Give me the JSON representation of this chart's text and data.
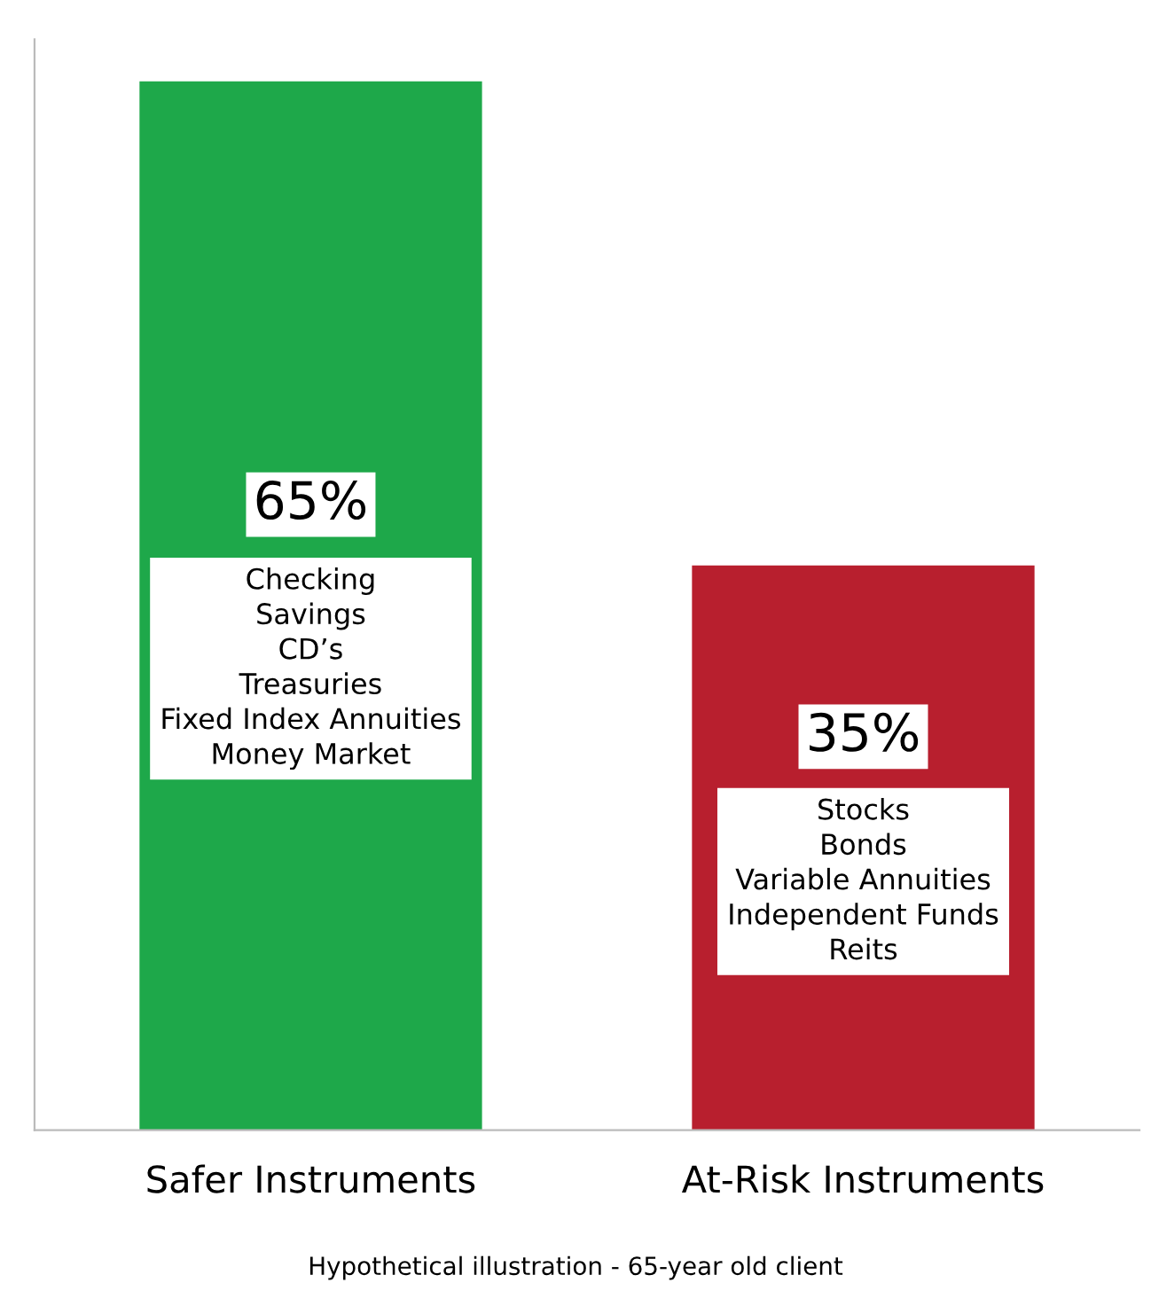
{
  "chart_data": {
    "type": "bar",
    "categories": [
      "Safer Instruments",
      "At-Risk Instruments"
    ],
    "values": [
      65,
      35
    ],
    "colors": [
      "#1ea84a",
      "#b81f2e"
    ],
    "value_labels": [
      "65%",
      "35%"
    ],
    "tick_labels": "x",
    "grid": false,
    "legend": false,
    "annotations": [
      "Checking\nSavings\nCD’s\nTreasuries\nFixed Index Annuities\nMoney Market",
      "Stocks\nBonds\nVariable Annuities\nIndependent Funds\nReits",
      "Hypothetical illustration - 65-year old client"
    ]
  }
}
